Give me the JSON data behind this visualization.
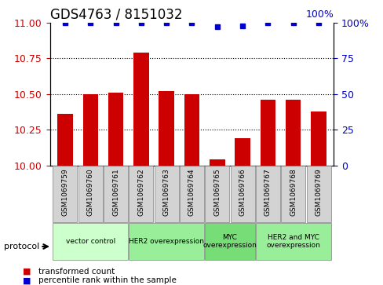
{
  "title": "GDS4763 / 8151032",
  "samples": [
    "GSM1069759",
    "GSM1069760",
    "GSM1069761",
    "GSM1069762",
    "GSM1069763",
    "GSM1069764",
    "GSM1069765",
    "GSM1069766",
    "GSM1069767",
    "GSM1069768",
    "GSM1069769"
  ],
  "transformed_counts": [
    10.36,
    10.5,
    10.51,
    10.79,
    10.52,
    10.5,
    10.04,
    10.19,
    10.46,
    10.46,
    10.38
  ],
  "percentile_ranks": [
    100,
    100,
    100,
    100,
    100,
    100,
    97,
    98,
    100,
    100,
    100
  ],
  "bar_color": "#cc0000",
  "dot_color": "#0000cc",
  "ylim_left": [
    10.0,
    11.0
  ],
  "ylim_right": [
    0,
    100
  ],
  "yticks_left": [
    10.0,
    10.25,
    10.5,
    10.75,
    11.0
  ],
  "yticks_right": [
    0,
    25,
    50,
    75,
    100
  ],
  "group_data": [
    {
      "start": 0,
      "end": 2,
      "label": "vector control",
      "color": "#ccffcc"
    },
    {
      "start": 3,
      "end": 5,
      "label": "HER2 overexpression",
      "color": "#99ee99"
    },
    {
      "start": 6,
      "end": 7,
      "label": "MYC\noverexpression",
      "color": "#77dd77"
    },
    {
      "start": 8,
      "end": 10,
      "label": "HER2 and MYC\noverexpression",
      "color": "#99ee99"
    }
  ],
  "protocol_label": "protocol",
  "legend_items": [
    {
      "color": "#cc0000",
      "label": "transformed count"
    },
    {
      "color": "#0000cc",
      "label": "percentile rank within the sample"
    }
  ],
  "bar_width": 0.6,
  "grid_color": "#000000",
  "tick_label_color_left": "#cc0000",
  "tick_label_color_right": "#0000cc",
  "bg_plot": "#ffffff",
  "bg_xticklabel": "#d3d3d3",
  "title_fontsize": 12,
  "tick_fontsize": 9,
  "label_fontsize": 8
}
